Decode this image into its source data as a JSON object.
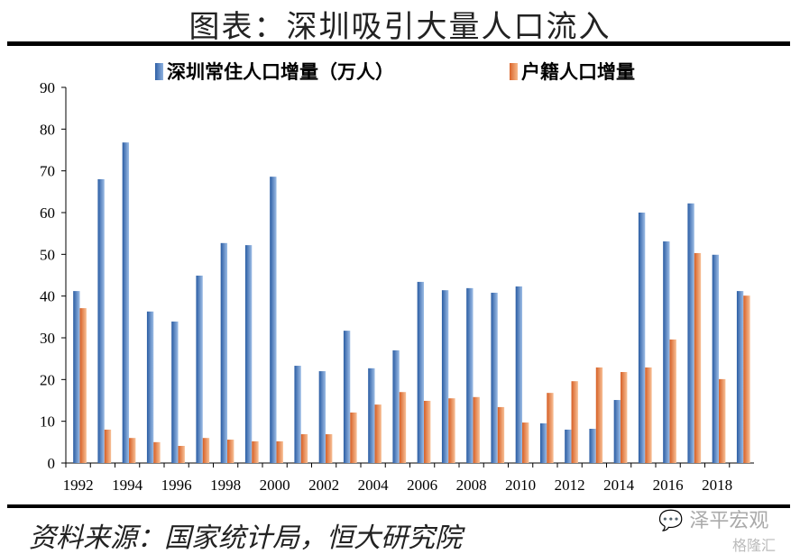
{
  "title": "图表：深圳吸引大量人口流入",
  "source": "资料来源：国家统计局，恒大研究院",
  "watermark": {
    "primary": "泽平宏观",
    "secondary": "格隆汇"
  },
  "chart_data": {
    "type": "bar",
    "title": "",
    "xlabel": "",
    "ylabel": "",
    "ylim": [
      0,
      90
    ],
    "yticks": [
      0,
      10,
      20,
      30,
      40,
      50,
      60,
      70,
      80,
      90
    ],
    "categories": [
      1992,
      1993,
      1994,
      1995,
      1996,
      1997,
      1998,
      1999,
      2000,
      2001,
      2002,
      2003,
      2004,
      2005,
      2006,
      2007,
      2008,
      2009,
      2010,
      2011,
      2012,
      2013,
      2014,
      2015,
      2016,
      2017,
      2018,
      2019
    ],
    "xtick_labels": [
      "1992",
      "1994",
      "1996",
      "1998",
      "2000",
      "2002",
      "2004",
      "2006",
      "2008",
      "2010",
      "2012",
      "2014",
      "2016",
      "2018"
    ],
    "legend_position": "top",
    "grid": false,
    "series": [
      {
        "name": "深圳常住人口增量（万人）",
        "color": "#3f73b8",
        "values": [
          41.2,
          68,
          76.8,
          36.3,
          33.9,
          44.9,
          52.7,
          52.2,
          68.6,
          23.3,
          22,
          31.7,
          22.7,
          27,
          43.4,
          41.4,
          41.9,
          40.8,
          42.3,
          9.5,
          8,
          8.2,
          15.1,
          60,
          53.1,
          62.2,
          49.9,
          41.2
        ]
      },
      {
        "name": "户籍人口增量",
        "color": "#ed7d31",
        "values": [
          37.1,
          8,
          6,
          5,
          4.1,
          6,
          5.6,
          5.2,
          5.2,
          6.9,
          6.9,
          12.1,
          14,
          17,
          14.9,
          15.5,
          15.8,
          13.4,
          9.7,
          16.8,
          19.6,
          22.9,
          21.8,
          22.9,
          29.6,
          50.3,
          20.1,
          40.1
        ]
      }
    ]
  }
}
